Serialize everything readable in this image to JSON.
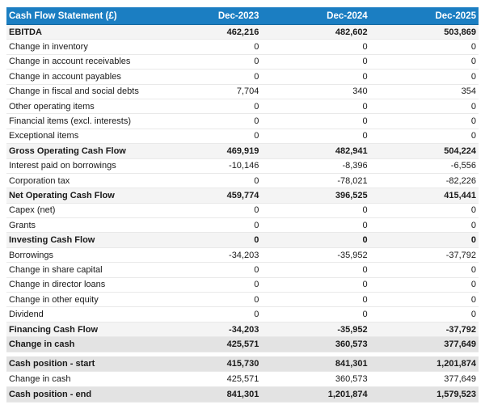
{
  "chart_data": {
    "type": "table",
    "title": "Cash Flow Statement (£)",
    "columns": [
      "Dec-2023",
      "Dec-2024",
      "Dec-2025"
    ],
    "rows": [
      {
        "label": "EBITDA",
        "values": [
          "462,216",
          "482,602",
          "503,869"
        ],
        "style": "subtotal"
      },
      {
        "label": "Change in inventory",
        "values": [
          "0",
          "0",
          "0"
        ],
        "style": "normal"
      },
      {
        "label": "Change in account receivables",
        "values": [
          "0",
          "0",
          "0"
        ],
        "style": "normal"
      },
      {
        "label": "Change in account payables",
        "values": [
          "0",
          "0",
          "0"
        ],
        "style": "normal"
      },
      {
        "label": "Change in fiscal and social debts",
        "values": [
          "7,704",
          "340",
          "354"
        ],
        "style": "normal"
      },
      {
        "label": "Other operating items",
        "values": [
          "0",
          "0",
          "0"
        ],
        "style": "normal"
      },
      {
        "label": "Financial items (excl. interests)",
        "values": [
          "0",
          "0",
          "0"
        ],
        "style": "normal"
      },
      {
        "label": "Exceptional items",
        "values": [
          "0",
          "0",
          "0"
        ],
        "style": "normal"
      },
      {
        "label": "Gross Operating Cash Flow",
        "values": [
          "469,919",
          "482,941",
          "504,224"
        ],
        "style": "subtotal"
      },
      {
        "label": "Interest paid on borrowings",
        "values": [
          "-10,146",
          "-8,396",
          "-6,556"
        ],
        "style": "normal"
      },
      {
        "label": "Corporation tax",
        "values": [
          "0",
          "-78,021",
          "-82,226"
        ],
        "style": "normal"
      },
      {
        "label": "Net Operating Cash Flow",
        "values": [
          "459,774",
          "396,525",
          "415,441"
        ],
        "style": "subtotal"
      },
      {
        "label": "Capex (net)",
        "values": [
          "0",
          "0",
          "0"
        ],
        "style": "normal"
      },
      {
        "label": "Grants",
        "values": [
          "0",
          "0",
          "0"
        ],
        "style": "normal"
      },
      {
        "label": "Investing Cash Flow",
        "values": [
          "0",
          "0",
          "0"
        ],
        "style": "subtotal"
      },
      {
        "label": "Borrowings",
        "values": [
          "-34,203",
          "-35,952",
          "-37,792"
        ],
        "style": "normal"
      },
      {
        "label": "Change in share capital",
        "values": [
          "0",
          "0",
          "0"
        ],
        "style": "normal"
      },
      {
        "label": "Change in director loans",
        "values": [
          "0",
          "0",
          "0"
        ],
        "style": "normal"
      },
      {
        "label": "Change in other equity",
        "values": [
          "0",
          "0",
          "0"
        ],
        "style": "normal"
      },
      {
        "label": "Dividend",
        "values": [
          "0",
          "0",
          "0"
        ],
        "style": "normal"
      },
      {
        "label": "Financing Cash Flow",
        "values": [
          "-34,203",
          "-35,952",
          "-37,792"
        ],
        "style": "subtotal"
      },
      {
        "label": "Change in cash",
        "values": [
          "425,571",
          "360,573",
          "377,649"
        ],
        "style": "total"
      }
    ],
    "footer_rows": [
      {
        "label": "Cash position - start",
        "values": [
          "415,730",
          "841,301",
          "1,201,874"
        ],
        "style": "total"
      },
      {
        "label": "Change in cash",
        "values": [
          "425,571",
          "360,573",
          "377,649"
        ],
        "style": "normal"
      },
      {
        "label": "Cash position - end",
        "values": [
          "841,301",
          "1,201,874",
          "1,579,523"
        ],
        "style": "total"
      }
    ]
  },
  "colors": {
    "header_bg": "#1b7ec2",
    "header_border": "#15699f",
    "header_text": "#ffffff",
    "subtotal_row_bg": "#f4f4f4",
    "total_row_bg": "#e3e3e3",
    "row_divider": "#e9e9e9",
    "text": "#1a1a1a"
  }
}
